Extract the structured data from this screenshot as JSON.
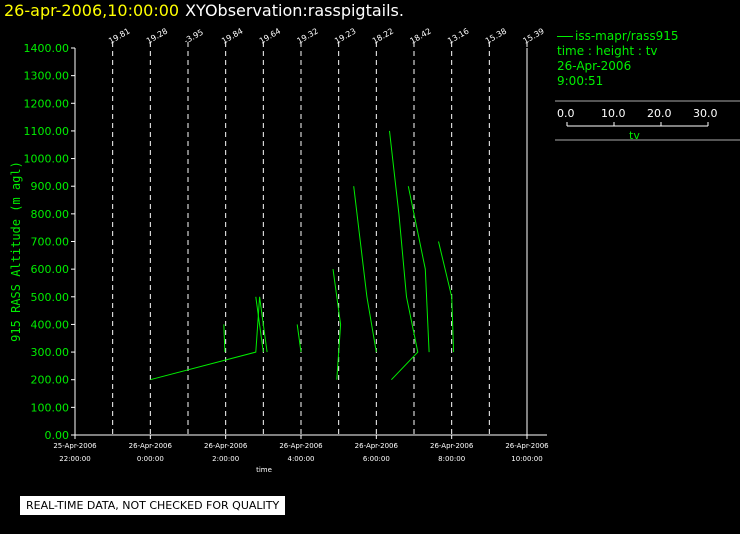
{
  "header": {
    "date": "26-apr-2006,10:00:00",
    "name": "XYObservation:rasspigtails."
  },
  "legend": {
    "series": "iss-mapr/rass915",
    "variables": "time : height : tv",
    "date": "26-Apr-2006",
    "time": "9:00:51",
    "scale_ticks": [
      "0.0",
      "10.0",
      "20.0",
      "30.0"
    ],
    "scale_title": "tv"
  },
  "notice": "REAL-TIME DATA, NOT CHECKED FOR QUALITY",
  "chart_data": {
    "type": "line",
    "ylabel": "915 RASS Altitude (m agl)",
    "xlabel": "time",
    "ylim": [
      0,
      1400
    ],
    "xlim": [
      -2,
      10
    ],
    "yticks": [
      "0.00",
      "100.00",
      "200.00",
      "300.00",
      "400.00",
      "500.00",
      "600.00",
      "700.00",
      "800.00",
      "900.00",
      "1000.00",
      "1100.00",
      "1200.00",
      "1300.00",
      "1400.00"
    ],
    "xticks": [
      {
        "x": -2,
        "date": "25-Apr-2006",
        "time": "22:00:00"
      },
      {
        "x": 0,
        "date": "26-Apr-2006",
        "time": "0:00:00"
      },
      {
        "x": 2,
        "date": "26-Apr-2006",
        "time": "2:00:00"
      },
      {
        "x": 4,
        "date": "26-Apr-2006",
        "time": "4:00:00"
      },
      {
        "x": 6,
        "date": "26-Apr-2006",
        "time": "6:00:00"
      },
      {
        "x": 8,
        "date": "26-Apr-2006",
        "time": "8:00:00"
      },
      {
        "x": 10,
        "date": "26-Apr-2006",
        "time": "10:00:00"
      }
    ],
    "profiles": [
      {
        "x": -1,
        "label": "19.81"
      },
      {
        "x": 0,
        "label": "19.28"
      },
      {
        "x": 1,
        "label": "-3.95"
      },
      {
        "x": 2,
        "label": "19.84"
      },
      {
        "x": 3,
        "label": "19.64"
      },
      {
        "x": 4,
        "label": "19.32"
      },
      {
        "x": 5,
        "label": "19.23"
      },
      {
        "x": 6,
        "label": "18.22"
      },
      {
        "x": 7,
        "label": "18.42"
      },
      {
        "x": 8,
        "label": "13.16"
      },
      {
        "x": 9,
        "label": "15.38"
      },
      {
        "x": 10,
        "label": "15.39"
      }
    ],
    "series": [
      {
        "name": "iss-mapr/rass915",
        "segments": [
          [
            [
              0,
              200
            ],
            [
              2.8,
              300
            ],
            [
              2.9,
              500
            ],
            [
              3.0,
              400
            ],
            [
              3.1,
              300
            ]
          ],
          [
            [
              1.95,
              400
            ],
            [
              1.98,
              300
            ]
          ],
          [
            [
              2.8,
              500
            ],
            [
              3.0,
              300
            ]
          ],
          [
            [
              3.9,
              400
            ],
            [
              4.0,
              300
            ]
          ],
          [
            [
              4.85,
              600
            ],
            [
              5.05,
              400
            ],
            [
              4.95,
              200
            ]
          ],
          [
            [
              5.4,
              900
            ],
            [
              5.75,
              500
            ],
            [
              6.0,
              300
            ]
          ],
          [
            [
              6.35,
              1100
            ],
            [
              6.6,
              800
            ],
            [
              6.8,
              500
            ],
            [
              7.1,
              300
            ],
            [
              6.4,
              200
            ]
          ],
          [
            [
              6.85,
              900
            ],
            [
              7.0,
              800
            ],
            [
              7.3,
              600
            ],
            [
              7.4,
              300
            ]
          ],
          [
            [
              7.65,
              700
            ],
            [
              8.0,
              500
            ],
            [
              8.05,
              300
            ]
          ]
        ]
      }
    ]
  }
}
